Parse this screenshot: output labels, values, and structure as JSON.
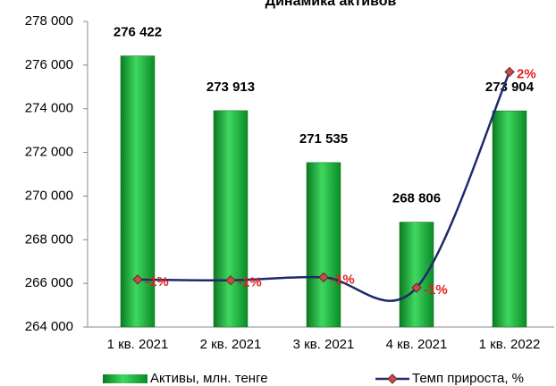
{
  "chart_data": {
    "type": "bar_line",
    "title": "Динамика активов",
    "categories": [
      "1 кв. 2021",
      "2 кв. 2021",
      "3 кв. 2021",
      "4 кв. 2021",
      "1 кв. 2022"
    ],
    "series": [
      {
        "name": "Активы, млн. тенге",
        "color": "#1fa83a",
        "type": "bar",
        "values": [
          276422,
          273913,
          271535,
          268806,
          273904
        ],
        "value_labels": [
          "276 422",
          "273 913",
          "271 535",
          "268 806",
          "273 904"
        ]
      },
      {
        "name": "Темп прироста, %",
        "color": "#1f2a6b",
        "marker_color": "#c0504d",
        "type": "line",
        "axis": "y2",
        "values": [
          -0.9,
          -0.91,
          -0.87,
          -1.01,
          1.9
        ],
        "value_labels": [
          "-1%",
          "-1%",
          "-1%",
          "-1%",
          "2%"
        ]
      }
    ],
    "ylim": [
      264000,
      278000
    ],
    "yticks": [
      {
        "value": 264000,
        "label": "264 000"
      },
      {
        "value": 266000,
        "label": "266 000"
      },
      {
        "value": 268000,
        "label": "268 000"
      },
      {
        "value": 270000,
        "label": "270 000"
      },
      {
        "value": 272000,
        "label": "272 000"
      },
      {
        "value": 274000,
        "label": "274 000"
      },
      {
        "value": 276000,
        "label": "276 000"
      },
      {
        "value": 278000,
        "label": "278 000"
      }
    ],
    "y2lim": [
      -1.54,
      2.58
    ],
    "grid": false,
    "legend": "bottom"
  }
}
